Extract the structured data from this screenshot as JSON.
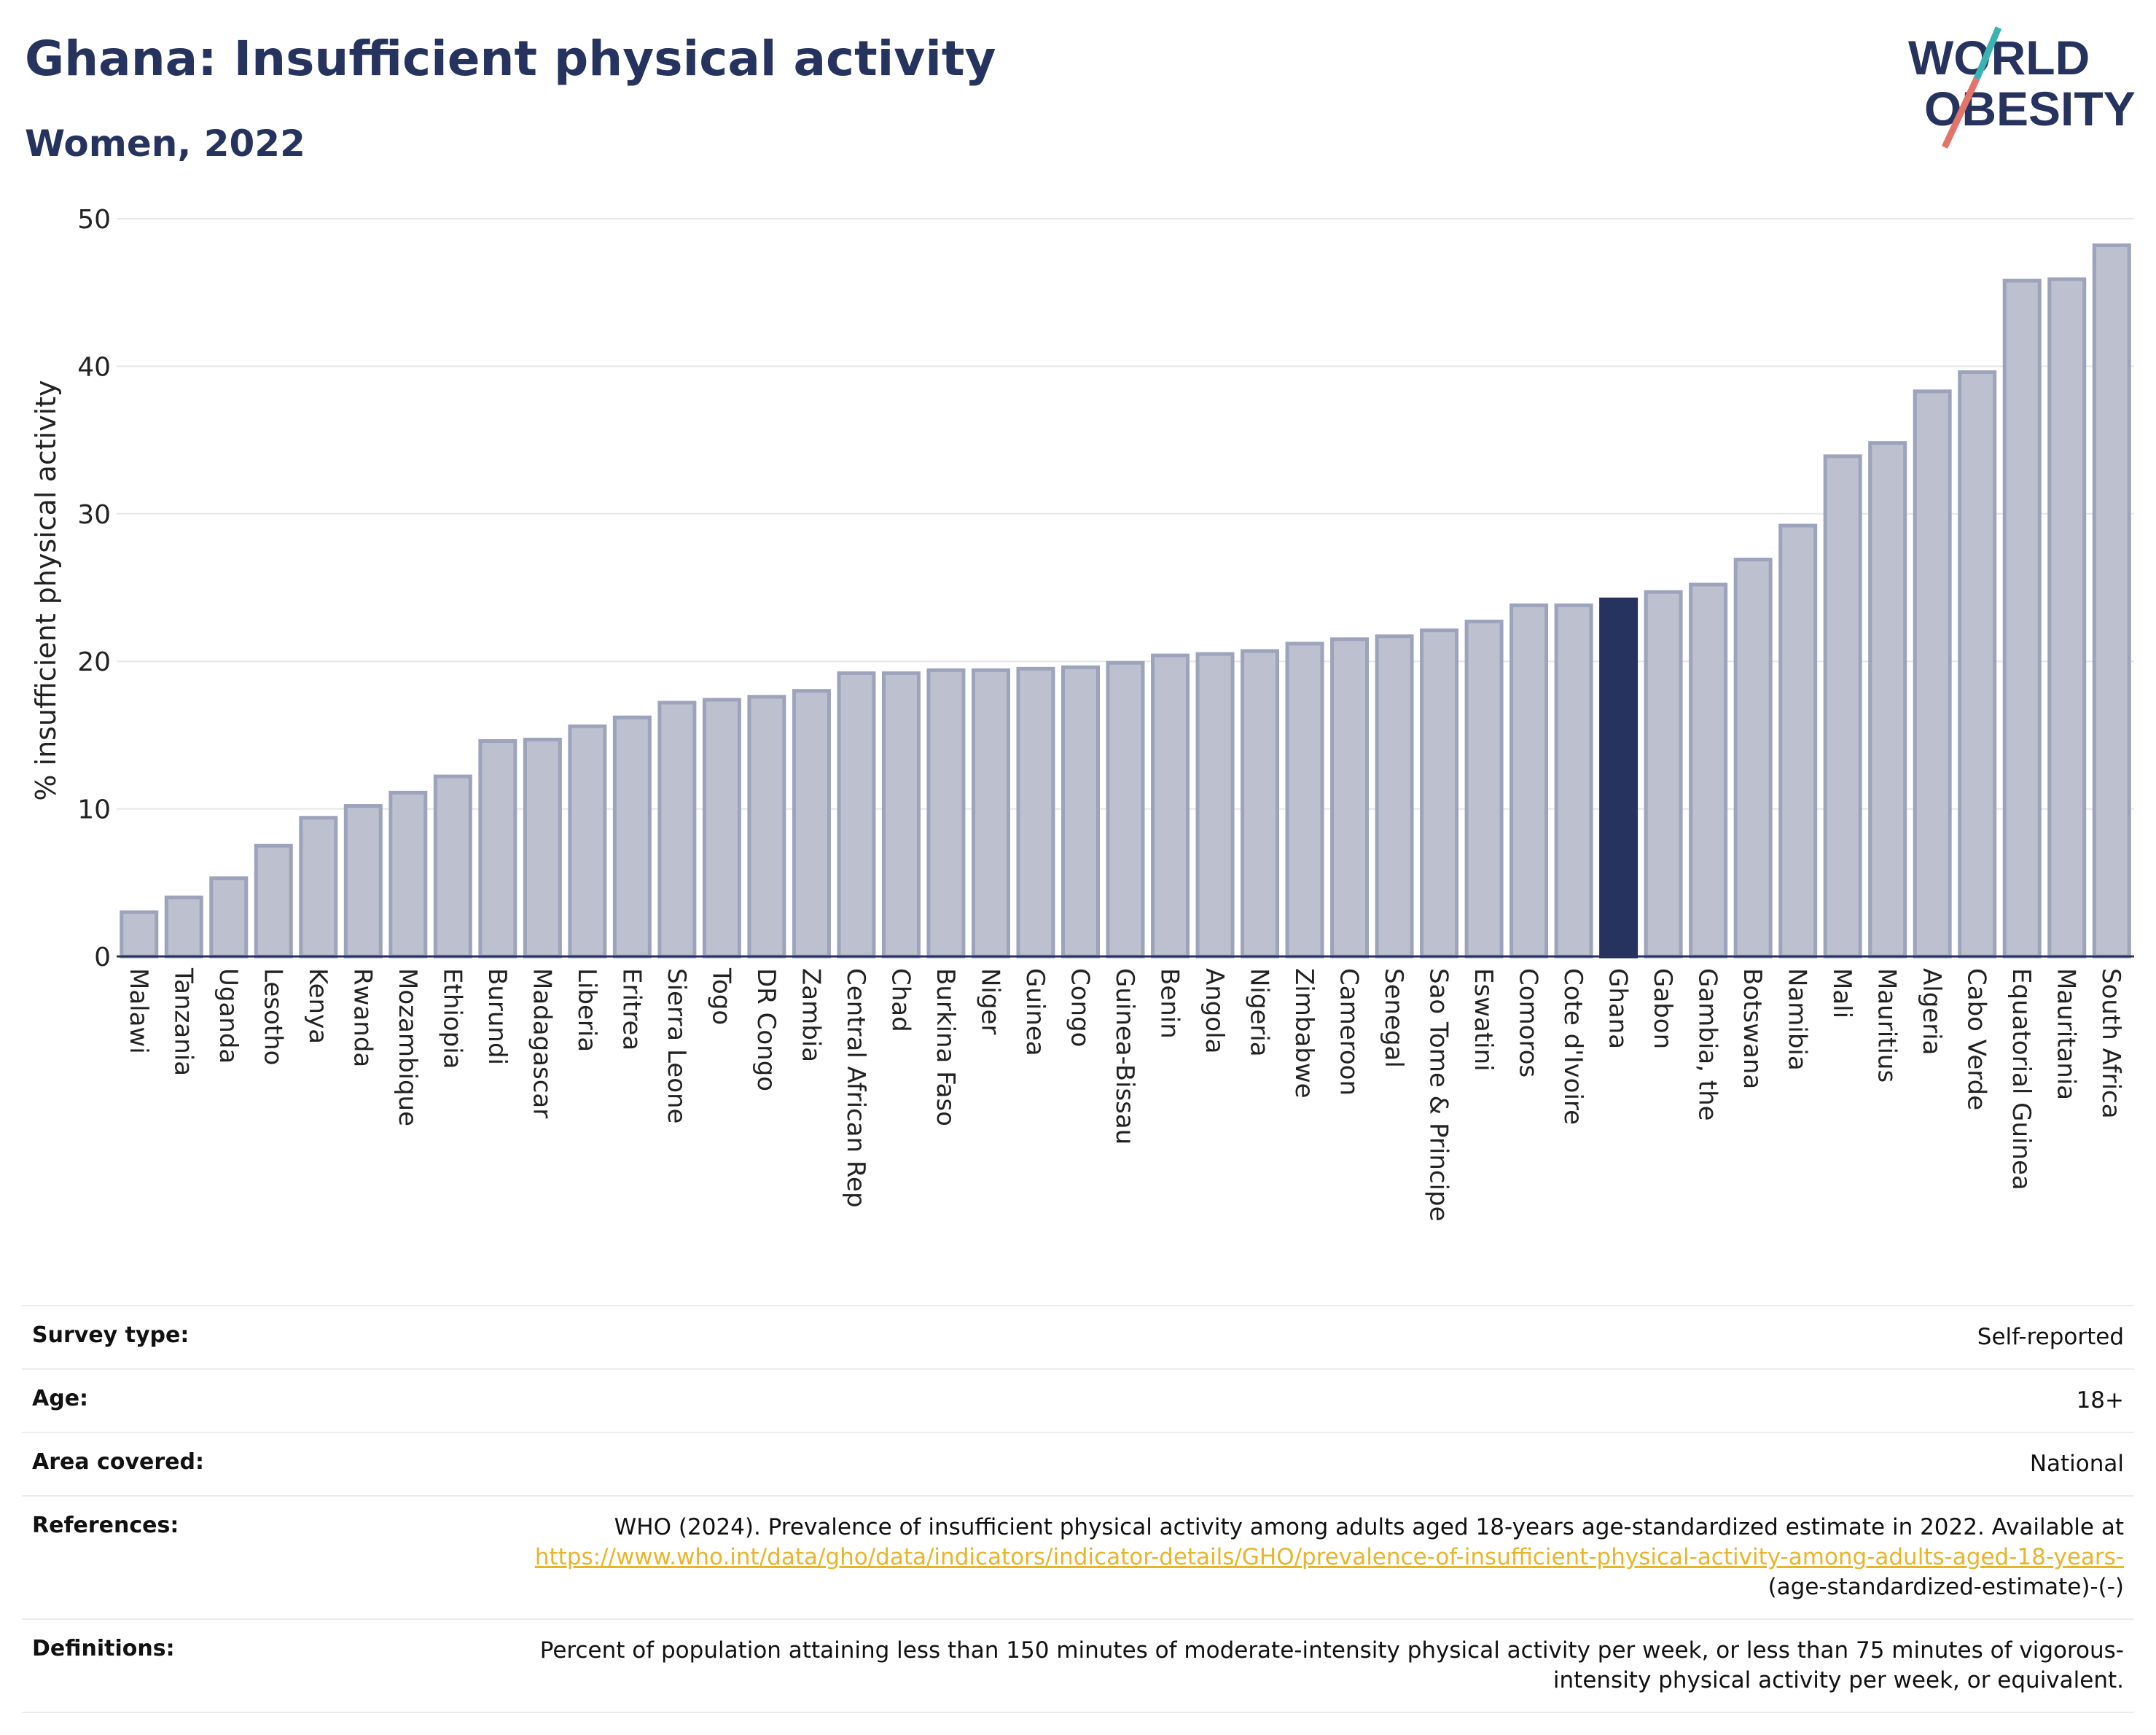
{
  "header": {
    "title": "Ghana: Insufficient physical activity",
    "subtitle": "Women, 2022"
  },
  "logo": {
    "line1": "WORLD",
    "line2": "OBESITY"
  },
  "chart_data": {
    "type": "bar",
    "title": "Ghana: Insufficient physical activity",
    "subtitle": "Women, 2022",
    "ylabel": "% insufficient physical activity",
    "xlabel": "",
    "ylim": [
      0,
      50
    ],
    "yticks": [
      0,
      10,
      20,
      30,
      40,
      50
    ],
    "grid": true,
    "highlight": "Ghana",
    "colors": {
      "bar": "#bcc0cf",
      "bar_edge": "#9da3bb",
      "highlight": "#27335f",
      "grid": "#e6e6e6"
    },
    "categories": [
      "Malawi",
      "Tanzania",
      "Uganda",
      "Lesotho",
      "Kenya",
      "Rwanda",
      "Mozambique",
      "Ethiopia",
      "Burundi",
      "Madagascar",
      "Liberia",
      "Eritrea",
      "Sierra Leone",
      "Togo",
      "DR Congo",
      "Zambia",
      "Central African Rep",
      "Chad",
      "Burkina Faso",
      "Niger",
      "Guinea",
      "Congo",
      "Guinea-Bissau",
      "Benin",
      "Angola",
      "Nigeria",
      "Zimbabwe",
      "Cameroon",
      "Senegal",
      "Sao Tome & Principe",
      "Eswatini",
      "Comoros",
      "Cote d'Ivoire",
      "Ghana",
      "Gabon",
      "Gambia, the",
      "Botswana",
      "Namibia",
      "Mali",
      "Mauritius",
      "Algeria",
      "Cabo Verde",
      "Equatorial Guinea",
      "Mauritania",
      "South Africa"
    ],
    "values": [
      3.0,
      4.0,
      5.3,
      7.5,
      9.4,
      10.2,
      11.1,
      12.2,
      14.6,
      14.7,
      15.6,
      16.2,
      17.2,
      17.4,
      17.6,
      18.0,
      19.2,
      19.2,
      19.4,
      19.4,
      19.5,
      19.6,
      19.9,
      20.4,
      20.5,
      20.7,
      21.2,
      21.5,
      21.7,
      22.1,
      22.7,
      23.8,
      23.8,
      24.2,
      24.7,
      25.2,
      26.9,
      29.2,
      33.9,
      34.8,
      38.3,
      39.6,
      45.8,
      45.9,
      48.2
    ]
  },
  "meta": {
    "survey_label": "Survey type:",
    "survey_value": "Self-reported",
    "age_label": "Age:",
    "age_value": "18+",
    "area_label": "Area covered:",
    "area_value": "National",
    "references_label": "References:",
    "references_text": "WHO (2024). Prevalence of insufficient physical activity among adults aged 18-years age-standardized estimate in 2022. Available at",
    "references_link": "https://www.who.int/data/gho/data/indicators/indicator-details/GHO/prevalence-of-insufficient-physical-activity-among-adults-aged-18-years-",
    "references_tail": "(age-standardized-estimate)-(-)",
    "definitions_label": "Definitions:",
    "definitions_text": "Percent of population attaining less than 150 minutes of moderate-intensity physical activity per week, or less than 75 minutes of vigorous-intensity physical activity per week, or equivalent."
  }
}
